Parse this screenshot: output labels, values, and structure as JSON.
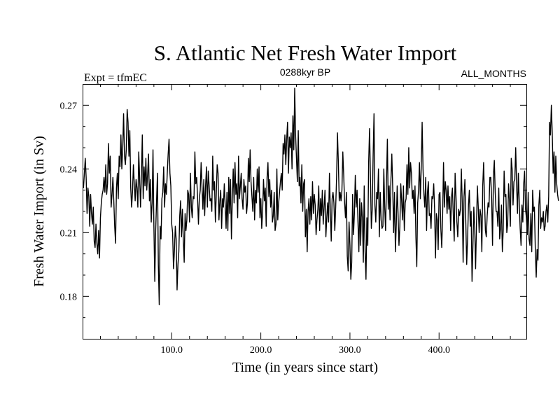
{
  "chart_data": {
    "type": "line",
    "title": "S. Atlantic Net Fresh Water Import",
    "subtitle_left": "Expt = tfmEC",
    "subtitle_center": "0288kyr BP",
    "subtitle_right": "ALL_MONTHS",
    "xlabel": "Time (in years since start)",
    "ylabel": "Fresh Water Import (in Sv)",
    "xlim": [
      0,
      498
    ],
    "ylim": [
      0.16,
      0.28
    ],
    "x_ticks": [
      100,
      200,
      300,
      400
    ],
    "x_tick_labels": [
      "100.0",
      "200.0",
      "300.0",
      "400.0"
    ],
    "y_ticks": [
      0.18,
      0.21,
      0.24,
      0.27
    ],
    "y_tick_labels": [
      "0.18",
      "0.21",
      "0.24",
      "0.27"
    ],
    "series": [
      {
        "name": "Fresh Water Import",
        "x_start": 1,
        "x_step": 1,
        "values": [
          0.231,
          0.238,
          0.245,
          0.236,
          0.219,
          0.231,
          0.227,
          0.213,
          0.228,
          0.219,
          0.214,
          0.222,
          0.206,
          0.203,
          0.214,
          0.205,
          0.2,
          0.211,
          0.198,
          0.217,
          0.224,
          0.228,
          0.23,
          0.236,
          0.229,
          0.242,
          0.228,
          0.233,
          0.252,
          0.238,
          0.246,
          0.222,
          0.228,
          0.236,
          0.225,
          0.213,
          0.205,
          0.231,
          0.238,
          0.226,
          0.246,
          0.241,
          0.256,
          0.24,
          0.25,
          0.266,
          0.246,
          0.242,
          0.249,
          0.268,
          0.262,
          0.246,
          0.258,
          0.231,
          0.222,
          0.229,
          0.242,
          0.233,
          0.225,
          0.235,
          0.231,
          0.222,
          0.248,
          0.236,
          0.222,
          0.237,
          0.256,
          0.226,
          0.241,
          0.232,
          0.245,
          0.23,
          0.238,
          0.247,
          0.225,
          0.235,
          0.215,
          0.224,
          0.249,
          0.213,
          0.187,
          0.211,
          0.225,
          0.238,
          0.195,
          0.176,
          0.213,
          0.207,
          0.226,
          0.229,
          0.241,
          0.222,
          0.233,
          0.228,
          0.238,
          0.247,
          0.254,
          0.238,
          0.232,
          0.214,
          0.21,
          0.193,
          0.201,
          0.213,
          0.207,
          0.183,
          0.195,
          0.201,
          0.218,
          0.225,
          0.208,
          0.221,
          0.207,
          0.196,
          0.219,
          0.211,
          0.216,
          0.23,
          0.228,
          0.215,
          0.238,
          0.222,
          0.217,
          0.227,
          0.226,
          0.248,
          0.233,
          0.236,
          0.227,
          0.214,
          0.226,
          0.23,
          0.243,
          0.232,
          0.221,
          0.235,
          0.218,
          0.232,
          0.241,
          0.222,
          0.239,
          0.232,
          0.225,
          0.226,
          0.22,
          0.246,
          0.23,
          0.234,
          0.215,
          0.228,
          0.242,
          0.238,
          0.216,
          0.225,
          0.23,
          0.212,
          0.226,
          0.222,
          0.233,
          0.223,
          0.212,
          0.229,
          0.211,
          0.236,
          0.219,
          0.235,
          0.207,
          0.226,
          0.24,
          0.224,
          0.243,
          0.228,
          0.233,
          0.217,
          0.246,
          0.226,
          0.232,
          0.238,
          0.226,
          0.221,
          0.235,
          0.229,
          0.232,
          0.219,
          0.224,
          0.245,
          0.234,
          0.249,
          0.234,
          0.227,
          0.22,
          0.236,
          0.216,
          0.23,
          0.224,
          0.24,
          0.229,
          0.241,
          0.217,
          0.226,
          0.212,
          0.22,
          0.235,
          0.225,
          0.231,
          0.213,
          0.236,
          0.243,
          0.227,
          0.235,
          0.222,
          0.23,
          0.215,
          0.218,
          0.229,
          0.211,
          0.214,
          0.24,
          0.216,
          0.224,
          0.229,
          0.234,
          0.238,
          0.23,
          0.252,
          0.247,
          0.256,
          0.242,
          0.254,
          0.262,
          0.238,
          0.255,
          0.25,
          0.257,
          0.24,
          0.265,
          0.249,
          0.278,
          0.256,
          0.245,
          0.234,
          0.258,
          0.232,
          0.236,
          0.224,
          0.242,
          0.22,
          0.233,
          0.235,
          0.208,
          0.221,
          0.201,
          0.22,
          0.226,
          0.214,
          0.227,
          0.216,
          0.234,
          0.219,
          0.228,
          0.223,
          0.209,
          0.216,
          0.221,
          0.232,
          0.211,
          0.226,
          0.218,
          0.23,
          0.214,
          0.222,
          0.23,
          0.208,
          0.217,
          0.224,
          0.215,
          0.238,
          0.22,
          0.206,
          0.226,
          0.229,
          0.224,
          0.211,
          0.222,
          0.236,
          0.257,
          0.243,
          0.225,
          0.229,
          0.225,
          0.23,
          0.248,
          0.237,
          0.224,
          0.217,
          0.229,
          0.199,
          0.192,
          0.215,
          0.204,
          0.188,
          0.196,
          0.228,
          0.209,
          0.219,
          0.237,
          0.222,
          0.23,
          0.215,
          0.201,
          0.226,
          0.204,
          0.224,
          0.217,
          0.196,
          0.232,
          0.201,
          0.188,
          0.217,
          0.204,
          0.243,
          0.259,
          0.236,
          0.212,
          0.221,
          0.246,
          0.266,
          0.223,
          0.215,
          0.229,
          0.226,
          0.24,
          0.208,
          0.229,
          0.216,
          0.212,
          0.213,
          0.24,
          0.222,
          0.211,
          0.234,
          0.254,
          0.221,
          0.232,
          0.216,
          0.235,
          0.247,
          0.231,
          0.21,
          0.229,
          0.201,
          0.214,
          0.232,
          0.219,
          0.204,
          0.213,
          0.233,
          0.225,
          0.216,
          0.232,
          0.211,
          0.224,
          0.226,
          0.242,
          0.228,
          0.25,
          0.231,
          0.243,
          0.238,
          0.226,
          0.23,
          0.219,
          0.232,
          0.208,
          0.194,
          0.224,
          0.23,
          0.243,
          0.226,
          0.241,
          0.262,
          0.24,
          0.228,
          0.222,
          0.236,
          0.211,
          0.229,
          0.234,
          0.218,
          0.219,
          0.212,
          0.227,
          0.226,
          0.233,
          0.221,
          0.198,
          0.219,
          0.216,
          0.202,
          0.228,
          0.229,
          0.212,
          0.203,
          0.218,
          0.243,
          0.222,
          0.234,
          0.23,
          0.219,
          0.232,
          0.221,
          0.227,
          0.211,
          0.227,
          0.231,
          0.218,
          0.206,
          0.238,
          0.227,
          0.215,
          0.208,
          0.221,
          0.218,
          0.221,
          0.24,
          0.224,
          0.196,
          0.227,
          0.235,
          0.215,
          0.195,
          0.207,
          0.223,
          0.23,
          0.213,
          0.22,
          0.187,
          0.204,
          0.222,
          0.212,
          0.193,
          0.214,
          0.232,
          0.222,
          0.21,
          0.221,
          0.218,
          0.201,
          0.232,
          0.243,
          0.225,
          0.211,
          0.208,
          0.218,
          0.224,
          0.222,
          0.236,
          0.236,
          0.226,
          0.204,
          0.237,
          0.244,
          0.229,
          0.22,
          0.22,
          0.213,
          0.231,
          0.207,
          0.212,
          0.223,
          0.201,
          0.211,
          0.239,
          0.227,
          0.228,
          0.21,
          0.214,
          0.233,
          0.225,
          0.213,
          0.245,
          0.24,
          0.223,
          0.234,
          0.235,
          0.25,
          0.233,
          0.219,
          0.238,
          0.224,
          0.212,
          0.204,
          0.223,
          0.215,
          0.233,
          0.239,
          0.221,
          0.217,
          0.209,
          0.229,
          0.207,
          0.204,
          0.219,
          0.201,
          0.23,
          0.22,
          0.222,
          0.202,
          0.189,
          0.202,
          0.197,
          0.223,
          0.23,
          0.212,
          0.217,
          0.215,
          0.22,
          0.211,
          0.213,
          0.22,
          0.223,
          0.215,
          0.227,
          0.262,
          0.256,
          0.27,
          0.257,
          0.238,
          0.248,
          0.229,
          0.246,
          0.233,
          0.228,
          0.225
        ]
      }
    ]
  }
}
